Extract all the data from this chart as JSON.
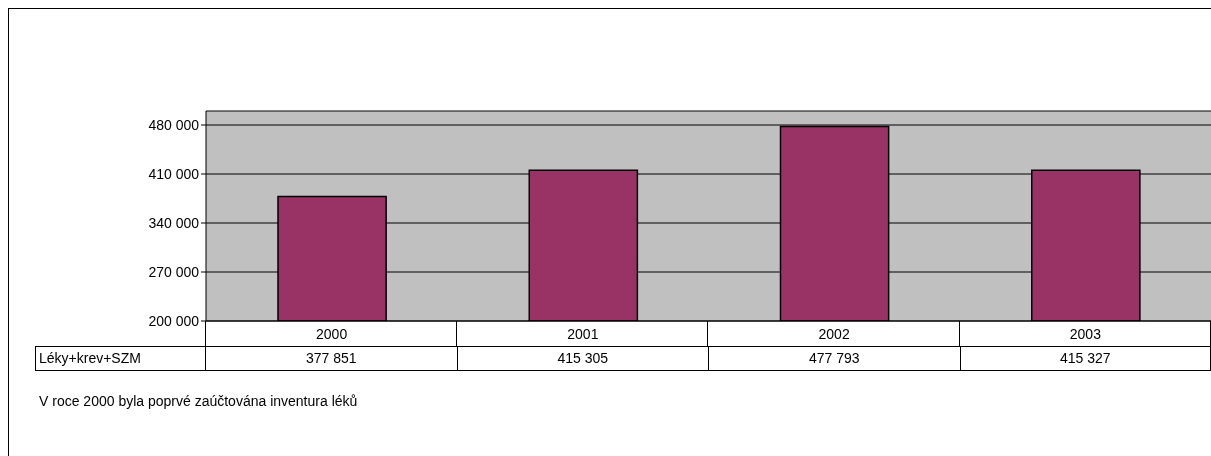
{
  "chart_data": {
    "type": "bar",
    "categories": [
      "2000",
      "2001",
      "2002",
      "2003"
    ],
    "series": [
      {
        "name": "Léky+krev+SZM",
        "color": "#993366",
        "values": [
          377851,
          415305,
          477793,
          415327
        ]
      }
    ],
    "value_labels": [
      "377 851",
      "415 305",
      "477 793",
      "415 327"
    ],
    "ylim": [
      200000,
      500000
    ],
    "yticks": [
      {
        "value": 200000,
        "label": "200 000"
      },
      {
        "value": 270000,
        "label": "270 000"
      },
      {
        "value": 340000,
        "label": "340 000"
      },
      {
        "value": 410000,
        "label": "410 000"
      },
      {
        "value": 480000,
        "label": "480 000"
      }
    ],
    "grid": "y",
    "legend": "bottom left",
    "annotations": [
      "V roce 2000 byla poprvé zaúčtována inventura léků"
    ]
  }
}
